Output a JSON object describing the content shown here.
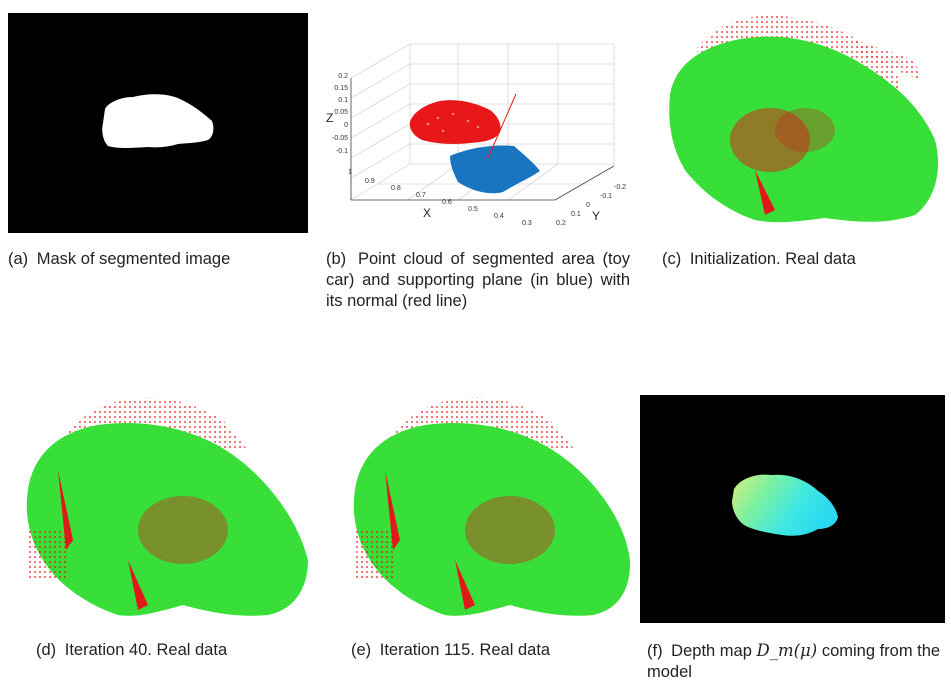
{
  "figures": [
    {
      "id": "a",
      "label": "(a)",
      "caption": "Mask of segmented image"
    },
    {
      "id": "b",
      "label": "(b)",
      "caption": "Point cloud of segmented area (toy car) and supporting plane (in blue) with its normal (red line)"
    },
    {
      "id": "c",
      "label": "(c)",
      "caption": "Initialization. Real data"
    },
    {
      "id": "d",
      "label": "(d)",
      "caption": "Iteration 40. Real data"
    },
    {
      "id": "e",
      "label": "(e)",
      "caption": "Iteration 115. Real data"
    },
    {
      "id": "f",
      "label": "(f)",
      "caption_pre": "Depth map",
      "caption_math": "D_m(μ)",
      "caption_post": "coming from the model"
    }
  ],
  "plot_b": {
    "z_label": "Z",
    "x_label": "X",
    "y_label": "Y",
    "z_ticks": [
      "0.2",
      "0.15",
      "0.1",
      "0.05",
      "0",
      "-0.05",
      "-0.1"
    ],
    "x_ticks": [
      "1",
      "0.9",
      "0.8",
      "0.7",
      "0.6",
      "0.5",
      "0.4",
      "0.3"
    ],
    "y_ticks": [
      "-0.2",
      "-0.1",
      "0",
      "0.1",
      "0.2"
    ]
  },
  "colors": {
    "model_points": "#33ee33",
    "data_points": "#ee1111",
    "plane_points": "#1a75c0",
    "mask_background": "#000000",
    "mask_foreground": "#ffffff"
  }
}
